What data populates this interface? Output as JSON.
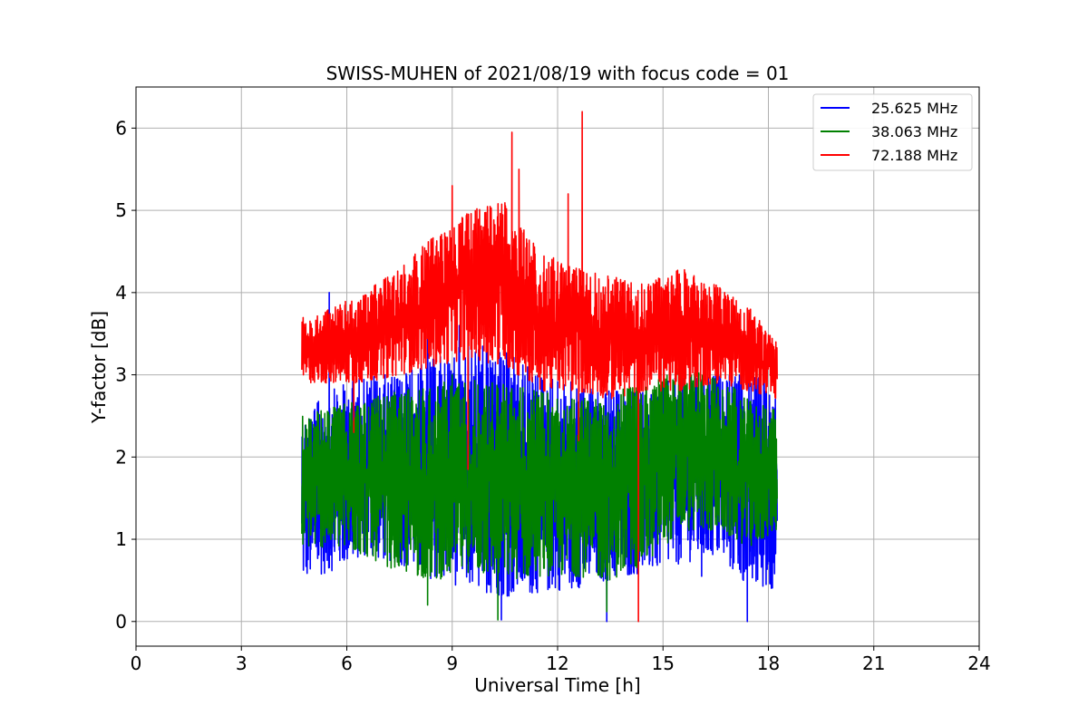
{
  "chart_data": {
    "type": "line",
    "title": "SWISS-MUHEN of 2021/08/19 with focus code = 01",
    "xlabel": "Universal Time [h]",
    "ylabel": "Y-factor [dB]",
    "xlim": [
      0,
      24
    ],
    "ylim": [
      -0.3,
      6.5
    ],
    "xticks": [
      0,
      3,
      6,
      9,
      12,
      15,
      18,
      21,
      24
    ],
    "xtick_labels": [
      "0",
      "3",
      "6",
      "9",
      "12",
      "15",
      "18",
      "21",
      "24"
    ],
    "yticks": [
      0,
      1,
      2,
      3,
      4,
      5,
      6
    ],
    "ytick_labels": [
      "0",
      "1",
      "2",
      "3",
      "4",
      "5",
      "6"
    ],
    "grid": true,
    "legend_position": "top-right",
    "x_range_of_data": [
      4.72,
      18.25
    ],
    "series": [
      {
        "name": "25.625 MHz",
        "color": "#0000ff",
        "x": [
          4.75,
          5.5,
          6.5,
          7.5,
          8.5,
          9.5,
          10.5,
          11.5,
          12.5,
          13.5,
          14.5,
          15.5,
          16.5,
          17.5,
          18.2
        ],
        "low": [
          0.5,
          0.6,
          0.8,
          0.7,
          0.5,
          0.4,
          0.3,
          0.35,
          0.4,
          0.5,
          0.6,
          0.7,
          0.8,
          0.4,
          0.4
        ],
        "high": [
          2.5,
          2.8,
          3.0,
          3.0,
          3.2,
          3.4,
          3.3,
          3.0,
          2.9,
          2.8,
          2.8,
          3.0,
          3.0,
          3.0,
          2.9
        ],
        "peaks": [
          [
            5.5,
            4.0
          ],
          [
            8.3,
            3.5
          ],
          [
            9.2,
            3.6
          ],
          [
            16.1,
            0.55
          ]
        ],
        "dips": [
          [
            10.4,
            0.02
          ],
          [
            13.4,
            0.0
          ],
          [
            17.4,
            0.0
          ]
        ]
      },
      {
        "name": "38.063 MHz",
        "color": "#008000",
        "x": [
          4.75,
          5.5,
          6.5,
          7.5,
          8.5,
          9.5,
          10.5,
          11.5,
          12.5,
          13.5,
          14.5,
          15.5,
          16.5,
          17.5,
          18.2
        ],
        "low": [
          0.9,
          0.9,
          0.8,
          0.6,
          0.5,
          0.6,
          0.5,
          0.55,
          0.55,
          0.5,
          0.7,
          1.1,
          1.1,
          0.9,
          1.1
        ],
        "high": [
          2.5,
          2.6,
          2.7,
          2.8,
          2.9,
          2.95,
          2.9,
          2.8,
          2.7,
          2.8,
          2.9,
          3.1,
          3.0,
          2.7,
          2.6
        ],
        "peaks": [
          [
            15.5,
            3.3
          ],
          [
            9.0,
            3.0
          ]
        ],
        "dips": [
          [
            8.3,
            0.2
          ],
          [
            10.3,
            0.02
          ],
          [
            13.4,
            0.12
          ]
        ]
      },
      {
        "name": "72.188 MHz",
        "color": "#ff0000",
        "x": [
          4.75,
          5.5,
          6.5,
          7.5,
          8.5,
          9.5,
          10.5,
          11.5,
          12.5,
          13.5,
          14.5,
          15.5,
          16.5,
          17.5,
          18.2
        ],
        "low": [
          2.9,
          2.9,
          2.9,
          3.0,
          3.1,
          3.2,
          3.1,
          2.8,
          2.8,
          2.7,
          2.8,
          2.8,
          2.9,
          2.8,
          2.7
        ],
        "high": [
          3.7,
          3.8,
          4.0,
          4.3,
          4.7,
          5.0,
          5.1,
          4.5,
          4.3,
          4.2,
          4.1,
          4.3,
          4.1,
          3.8,
          3.4
        ],
        "peaks": [
          [
            10.7,
            5.95
          ],
          [
            12.7,
            6.2
          ],
          [
            10.9,
            5.5
          ],
          [
            9.0,
            5.3
          ],
          [
            12.3,
            5.2
          ]
        ],
        "dips": [
          [
            9.45,
            1.85
          ],
          [
            14.3,
            0.0
          ],
          [
            12.6,
            2.2
          ],
          [
            6.2,
            2.3
          ]
        ]
      }
    ]
  }
}
